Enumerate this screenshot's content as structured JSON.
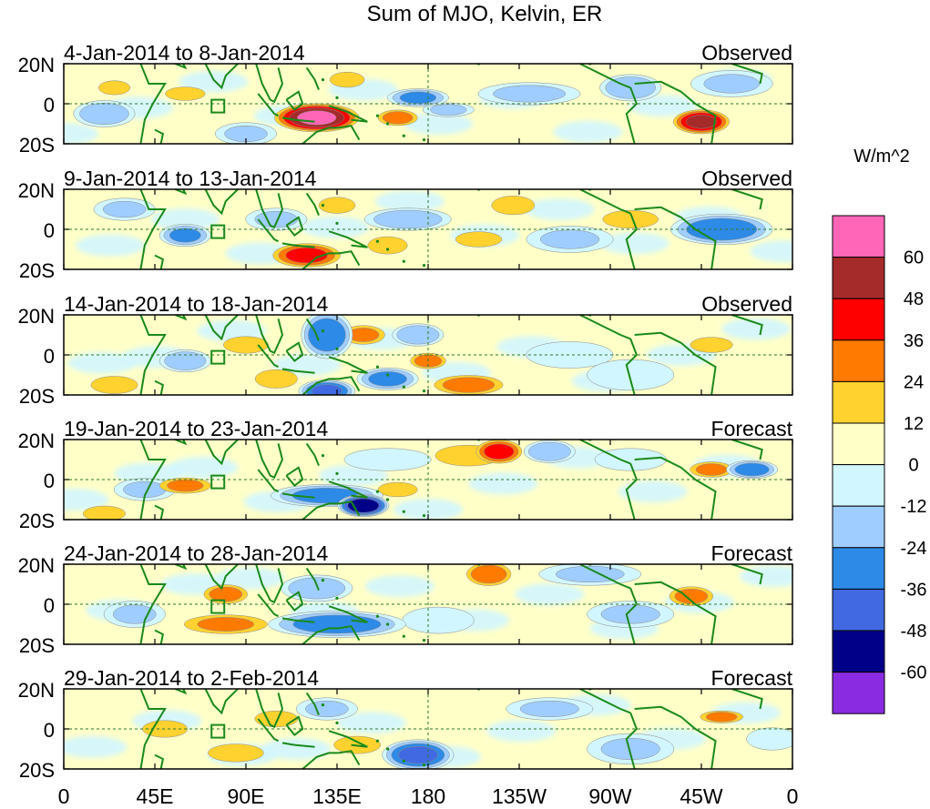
{
  "chart_data": {
    "type": "heatmap",
    "title": "Sum of MJO, Kelvin, ER",
    "units_label": "W/m^2",
    "x_ticks": [
      "0",
      "45E",
      "90E",
      "135E",
      "180",
      "135W",
      "90W",
      "45W",
      "0"
    ],
    "y_ticks": [
      "20N",
      "0",
      "20S"
    ],
    "xlim_deg_east": [
      0,
      360
    ],
    "ylim_deg": [
      -20,
      20
    ],
    "colorbar": {
      "levels": [
        "60",
        "48",
        "36",
        "24",
        "12",
        "0",
        "-12",
        "-24",
        "-36",
        "-48",
        "-60"
      ],
      "colors": [
        "#ff66b8",
        "#a52a2a",
        "#ff0000",
        "#ff7a00",
        "#ffd230",
        "#ffffc8",
        "#d2f6ff",
        "#a0cdff",
        "#2d8ae6",
        "#4169e1",
        "#000088",
        "#8a2be2"
      ]
    },
    "panels": [
      {
        "period": "4-Jan-2014 to 8-Jan-2014",
        "kind": "Observed",
        "anomalies": [
          {
            "lon": 125,
            "lat": -7,
            "rlon": 16,
            "rlat": 6,
            "value": 62
          },
          {
            "lon": 165,
            "lat": -7,
            "rlon": 7,
            "rlat": 3,
            "value": 28
          },
          {
            "lon": 315,
            "lat": -9,
            "rlon": 10,
            "rlat": 5,
            "value": 50
          },
          {
            "lon": 60,
            "lat": 5,
            "rlon": 9,
            "rlat": 3,
            "value": 14
          },
          {
            "lon": 25,
            "lat": 8,
            "rlon": 6,
            "rlat": 3,
            "value": 16
          },
          {
            "lon": 150,
            "lat": 12,
            "rlon": 12,
            "rlat": 4,
            "value": 12
          },
          {
            "lon": 140,
            "lat": 12,
            "rlon": 6,
            "rlat": 3,
            "value": 24
          },
          {
            "lon": 105,
            "lat": 4,
            "rlon": 8,
            "rlat": 4,
            "value": 12
          },
          {
            "lon": 250,
            "lat": 10,
            "rlon": 12,
            "rlat": 4,
            "value": 12
          },
          {
            "lon": 20,
            "lat": -5,
            "rlon": 10,
            "rlat": 5,
            "value": -22
          },
          {
            "lon": 175,
            "lat": 3,
            "rlon": 10,
            "rlat": 3,
            "value": -26
          },
          {
            "lon": 190,
            "lat": -3,
            "rlon": 8,
            "rlat": 2,
            "value": -14
          },
          {
            "lon": 230,
            "lat": 5,
            "rlon": 18,
            "rlat": 4,
            "value": -16
          },
          {
            "lon": 280,
            "lat": 8,
            "rlon": 10,
            "rlat": 5,
            "value": -24
          },
          {
            "lon": 90,
            "lat": -15,
            "rlon": 10,
            "rlat": 4,
            "value": -14
          },
          {
            "lon": 330,
            "lat": 10,
            "rlon": 14,
            "rlat": 5,
            "value": -14
          }
        ]
      },
      {
        "period": "9-Jan-2014 to 13-Jan-2014",
        "kind": "Observed",
        "anomalies": [
          {
            "lon": 120,
            "lat": -13,
            "rlon": 13,
            "rlat": 5,
            "value": 40
          },
          {
            "lon": 325,
            "lat": 0,
            "rlon": 18,
            "rlat": 6,
            "value": -36
          },
          {
            "lon": 205,
            "lat": -5,
            "rlon": 9,
            "rlat": 3,
            "value": 24
          },
          {
            "lon": 160,
            "lat": -8,
            "rlon": 8,
            "rlat": 4,
            "value": 18
          },
          {
            "lon": 222,
            "lat": 12,
            "rlon": 10,
            "rlat": 5,
            "value": 14
          },
          {
            "lon": 135,
            "lat": 12,
            "rlon": 8,
            "rlat": 4,
            "value": 14
          },
          {
            "lon": 280,
            "lat": 5,
            "rlon": 12,
            "rlat": 4,
            "value": 20
          },
          {
            "lon": 85,
            "lat": 12,
            "rlon": 10,
            "rlat": 4,
            "value": 12
          },
          {
            "lon": 310,
            "lat": -15,
            "rlon": 12,
            "rlat": 3,
            "value": 12
          },
          {
            "lon": 60,
            "lat": -3,
            "rlon": 8,
            "rlat": 4,
            "value": -26
          },
          {
            "lon": 170,
            "lat": 5,
            "rlon": 15,
            "rlat": 4,
            "value": -22
          },
          {
            "lon": 105,
            "lat": 5,
            "rlon": 10,
            "rlat": 4,
            "value": -14
          },
          {
            "lon": 250,
            "lat": -5,
            "rlon": 15,
            "rlat": 5,
            "value": -14
          },
          {
            "lon": 30,
            "lat": 10,
            "rlon": 10,
            "rlat": 4,
            "value": -14
          }
        ]
      },
      {
        "period": "14-Jan-2014 to 18-Jan-2014",
        "kind": "Observed",
        "anomalies": [
          {
            "lon": 130,
            "lat": 10,
            "rlon": 8,
            "rlat": 10,
            "value": -36
          },
          {
            "lon": 130,
            "lat": -18,
            "rlon": 9,
            "rlat": 4,
            "value": -38
          },
          {
            "lon": 160,
            "lat": -12,
            "rlon": 10,
            "rlat": 4,
            "value": -28
          },
          {
            "lon": 148,
            "lat": 10,
            "rlon": 8,
            "rlat": 4,
            "value": 26
          },
          {
            "lon": 180,
            "lat": -3,
            "rlon": 6,
            "rlat": 3,
            "value": 28
          },
          {
            "lon": 200,
            "lat": -15,
            "rlon": 14,
            "rlat": 4,
            "value": 30
          },
          {
            "lon": 90,
            "lat": 5,
            "rlon": 10,
            "rlat": 4,
            "value": 16
          },
          {
            "lon": 105,
            "lat": -12,
            "rlon": 8,
            "rlat": 4,
            "value": 24
          },
          {
            "lon": 60,
            "lat": -3,
            "rlon": 8,
            "rlat": 4,
            "value": -22
          },
          {
            "lon": 175,
            "lat": 10,
            "rlon": 8,
            "rlat": 4,
            "value": -24
          },
          {
            "lon": 320,
            "lat": 5,
            "rlon": 8,
            "rlat": 3,
            "value": 24
          },
          {
            "lon": 25,
            "lat": -15,
            "rlon": 10,
            "rlat": 4,
            "value": 18
          },
          {
            "lon": 35,
            "lat": 5,
            "rlon": 10,
            "rlat": 5,
            "value": 12
          },
          {
            "lon": 250,
            "lat": 0,
            "rlon": 15,
            "rlat": 5,
            "value": -12
          },
          {
            "lon": 280,
            "lat": -10,
            "rlon": 15,
            "rlat": 6,
            "value": -12
          }
        ]
      },
      {
        "period": "19-Jan-2014 to 23-Jan-2014",
        "kind": "Forecast",
        "anomalies": [
          {
            "lon": 148,
            "lat": -13,
            "rlon": 8,
            "rlat": 4,
            "value": -58
          },
          {
            "lon": 130,
            "lat": -8,
            "rlon": 20,
            "rlat": 4,
            "value": -30
          },
          {
            "lon": 215,
            "lat": 14,
            "rlon": 8,
            "rlat": 5,
            "value": 40
          },
          {
            "lon": 200,
            "lat": 12,
            "rlon": 15,
            "rlat": 5,
            "value": 20
          },
          {
            "lon": 320,
            "lat": 5,
            "rlon": 8,
            "rlat": 3,
            "value": 26
          },
          {
            "lon": 340,
            "lat": 5,
            "rlon": 8,
            "rlat": 3,
            "value": -30
          },
          {
            "lon": 60,
            "lat": -3,
            "rlon": 10,
            "rlat": 3,
            "value": 26
          },
          {
            "lon": 165,
            "lat": -5,
            "rlon": 8,
            "rlat": 3,
            "value": 18
          },
          {
            "lon": 20,
            "lat": -17,
            "rlon": 8,
            "rlat": 3,
            "value": 24
          },
          {
            "lon": 240,
            "lat": 14,
            "rlon": 8,
            "rlat": 4,
            "value": -24
          },
          {
            "lon": 160,
            "lat": 10,
            "rlon": 15,
            "rlat": 4,
            "value": -12
          },
          {
            "lon": 40,
            "lat": -5,
            "rlon": 10,
            "rlat": 4,
            "value": -14
          },
          {
            "lon": 280,
            "lat": 10,
            "rlon": 12,
            "rlat": 4,
            "value": -12
          }
        ]
      },
      {
        "period": "24-Jan-2014 to 28-Jan-2014",
        "kind": "Forecast",
        "anomalies": [
          {
            "lon": 135,
            "lat": -10,
            "rlon": 25,
            "rlat": 5,
            "value": -32
          },
          {
            "lon": 125,
            "lat": 8,
            "rlon": 12,
            "rlat": 5,
            "value": -22
          },
          {
            "lon": 210,
            "lat": 15,
            "rlon": 8,
            "rlat": 5,
            "value": 32
          },
          {
            "lon": 310,
            "lat": 4,
            "rlon": 8,
            "rlat": 4,
            "value": 28
          },
          {
            "lon": 80,
            "lat": 5,
            "rlon": 8,
            "rlat": 4,
            "value": 28
          },
          {
            "lon": 80,
            "lat": -10,
            "rlon": 18,
            "rlat": 4,
            "value": 26
          },
          {
            "lon": 260,
            "lat": 15,
            "rlon": 18,
            "rlat": 4,
            "value": -14
          },
          {
            "lon": 35,
            "lat": -5,
            "rlon": 10,
            "rlat": 5,
            "value": -14
          },
          {
            "lon": 280,
            "lat": -5,
            "rlon": 15,
            "rlat": 5,
            "value": -14
          },
          {
            "lon": 340,
            "lat": -10,
            "rlon": 12,
            "rlat": 5,
            "value": 12
          },
          {
            "lon": 185,
            "lat": -8,
            "rlon": 12,
            "rlat": 5,
            "value": -12
          }
        ]
      },
      {
        "period": "29-Jan-2014 to 2-Feb-2014",
        "kind": "Forecast",
        "anomalies": [
          {
            "lon": 175,
            "lat": -13,
            "rlon": 12,
            "rlat": 6,
            "value": -40
          },
          {
            "lon": 85,
            "lat": -12,
            "rlon": 12,
            "rlat": 4,
            "value": 20
          },
          {
            "lon": 325,
            "lat": 6,
            "rlon": 8,
            "rlat": 2,
            "value": 26
          },
          {
            "lon": 50,
            "lat": 0,
            "rlon": 10,
            "rlat": 4,
            "value": 16
          },
          {
            "lon": 145,
            "lat": -8,
            "rlon": 10,
            "rlat": 4,
            "value": 18
          },
          {
            "lon": 105,
            "lat": 5,
            "rlon": 10,
            "rlat": 4,
            "value": 14
          },
          {
            "lon": 130,
            "lat": 10,
            "rlon": 10,
            "rlat": 4,
            "value": -14
          },
          {
            "lon": 240,
            "lat": 10,
            "rlon": 15,
            "rlat": 4,
            "value": -14
          },
          {
            "lon": 350,
            "lat": -5,
            "rlon": 8,
            "rlat": 4,
            "value": -12
          },
          {
            "lon": 280,
            "lat": -10,
            "rlon": 15,
            "rlat": 6,
            "value": -14
          },
          {
            "lon": 30,
            "lat": -10,
            "rlon": 10,
            "rlat": 4,
            "value": 12
          }
        ]
      }
    ]
  }
}
